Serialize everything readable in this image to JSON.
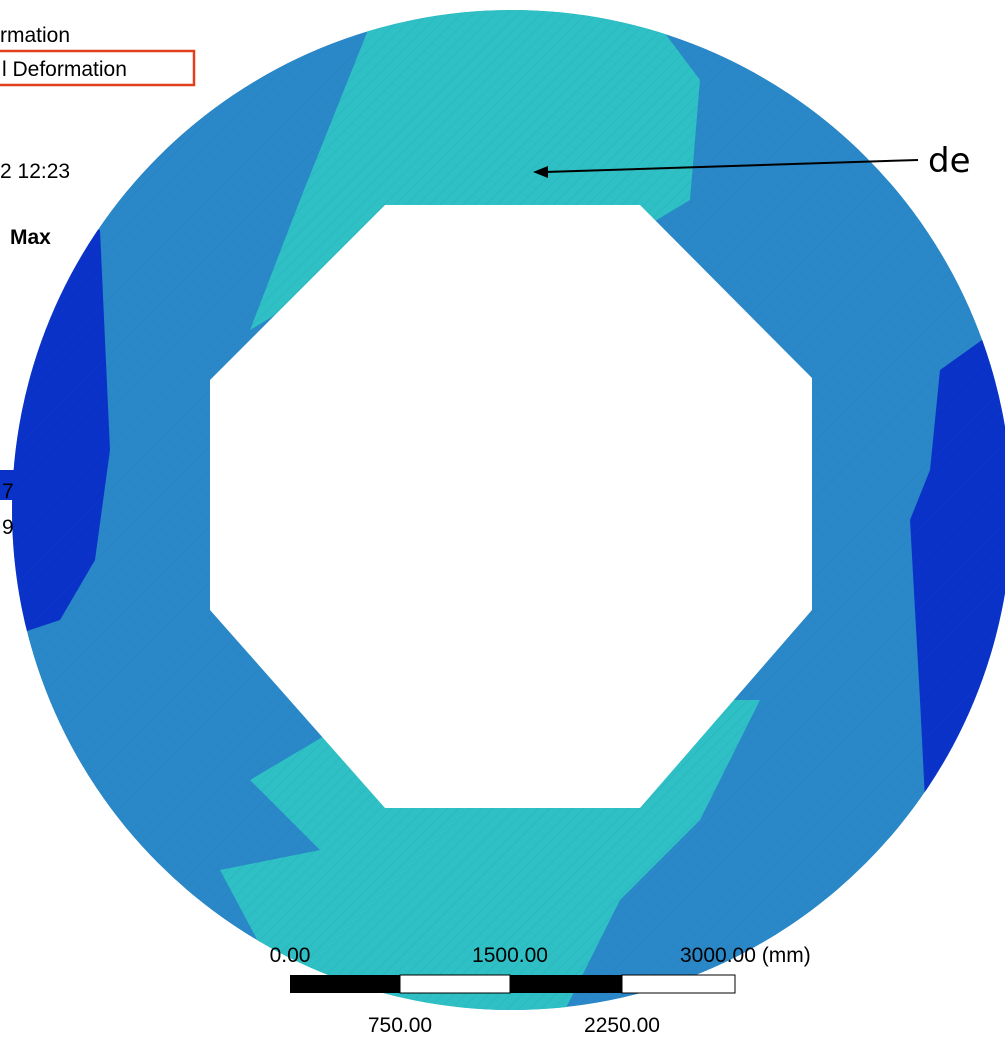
{
  "legend": {
    "title": "rmation",
    "subtitle": "l Deformation",
    "date": "2 12:23",
    "max": "Max",
    "value_1": "7",
    "value_2": "9"
  },
  "annotation": {
    "label": "de"
  },
  "scale_bar": {
    "top_labels": [
      "0.00",
      "1500.00",
      "3000.00 (mm)"
    ],
    "bottom_labels": [
      "750.00",
      "2250.00"
    ]
  }
}
